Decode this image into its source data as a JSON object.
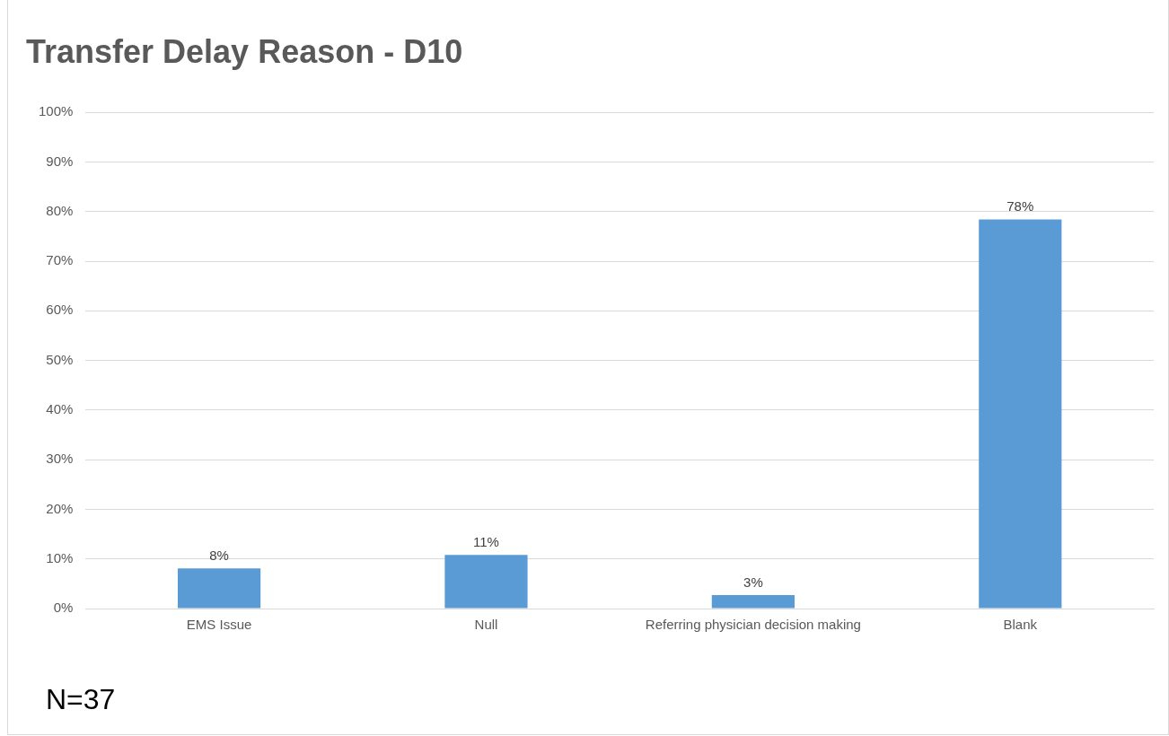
{
  "chart_data": {
    "type": "bar",
    "title": "Transfer Delay Reason - D10",
    "categories": [
      "EMS Issue",
      "Null",
      "Referring physician decision making",
      "Blank"
    ],
    "values": [
      8.1,
      10.8,
      2.7,
      78.4
    ],
    "value_labels": [
      "8%",
      "11%",
      "3%",
      "78%"
    ],
    "color": "#5b9bd5",
    "ylim": [
      0,
      100
    ],
    "yticks": [
      {
        "value": 0,
        "label": "0%"
      },
      {
        "value": 10,
        "label": "10%"
      },
      {
        "value": 20,
        "label": "20%"
      },
      {
        "value": 30,
        "label": "30%"
      },
      {
        "value": 40,
        "label": "40%"
      },
      {
        "value": 50,
        "label": "50%"
      },
      {
        "value": 60,
        "label": "60%"
      },
      {
        "value": 70,
        "label": "70%"
      },
      {
        "value": 80,
        "label": "80%"
      },
      {
        "value": 90,
        "label": "90%"
      },
      {
        "value": 100,
        "label": "100%"
      }
    ],
    "grid": "y",
    "legend": false,
    "annotations": [
      "N=37"
    ]
  }
}
